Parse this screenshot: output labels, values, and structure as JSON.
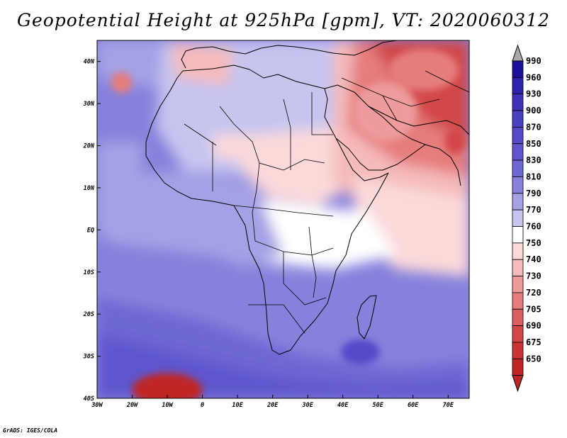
{
  "title": "Geopotential Height at 925hPa [gpm], VT: 2020060312",
  "credit": "GrADS: IGES/COLA",
  "map": {
    "region": "Africa",
    "lon_range": [
      -30,
      76
    ],
    "lat_range": [
      -40,
      45
    ]
  },
  "axes": {
    "x_ticks": [
      {
        "label": "30W",
        "lon": -30
      },
      {
        "label": "20W",
        "lon": -20
      },
      {
        "label": "10W",
        "lon": -10
      },
      {
        "label": "0",
        "lon": 0
      },
      {
        "label": "10E",
        "lon": 10
      },
      {
        "label": "20E",
        "lon": 20
      },
      {
        "label": "30E",
        "lon": 30
      },
      {
        "label": "40E",
        "lon": 40
      },
      {
        "label": "50E",
        "lon": 50
      },
      {
        "label": "60E",
        "lon": 60
      },
      {
        "label": "70E",
        "lon": 70
      }
    ],
    "y_ticks": [
      {
        "label": "40N",
        "lat": 40
      },
      {
        "label": "30N",
        "lat": 30
      },
      {
        "label": "20N",
        "lat": 20
      },
      {
        "label": "10N",
        "lat": 10
      },
      {
        "label": "EQ",
        "lat": 0
      },
      {
        "label": "10S",
        "lat": -10
      },
      {
        "label": "20S",
        "lat": -20
      },
      {
        "label": "30S",
        "lat": -30
      },
      {
        "label": "40S",
        "lat": -40
      }
    ]
  },
  "colorbar": {
    "levels": [
      "990",
      "960",
      "930",
      "900",
      "870",
      "850",
      "830",
      "810",
      "790",
      "770",
      "760",
      "750",
      "740",
      "730",
      "720",
      "705",
      "690",
      "675",
      "650"
    ],
    "colors": [
      "#1a0f99",
      "#2d22ab",
      "#3e33b8",
      "#4a40c2",
      "#5549c8",
      "#5f56cd",
      "#6e68d3",
      "#8682dc",
      "#a4a2e5",
      "#c6c5ef",
      "#ffffff",
      "#fbd9d9",
      "#f5baba",
      "#ee9b9b",
      "#e57d7d",
      "#dc5f5f",
      "#d24747",
      "#c93434",
      "#bf2525"
    ],
    "over_color": "#a8a8a8",
    "under_color": "#bf2525"
  },
  "field_regions": [
    {
      "lon": 45,
      "lat": -29,
      "rx": 5.5,
      "ry": 3,
      "level": "870"
    },
    {
      "lon": -10,
      "lat": -38,
      "rx": 10,
      "ry": 4,
      "level": "650"
    },
    {
      "lon": -23,
      "lat": 35,
      "rx": 3,
      "ry": 2.5,
      "level": "720"
    },
    {
      "lon": 72,
      "lat": 21,
      "rx": 3,
      "ry": 3,
      "level": "690"
    },
    {
      "lon": 63,
      "lat": 38,
      "rx": 10,
      "ry": 5,
      "level": "720"
    },
    {
      "lon": 52,
      "lat": 28,
      "rx": 9,
      "ry": 7,
      "level": "730"
    }
  ]
}
